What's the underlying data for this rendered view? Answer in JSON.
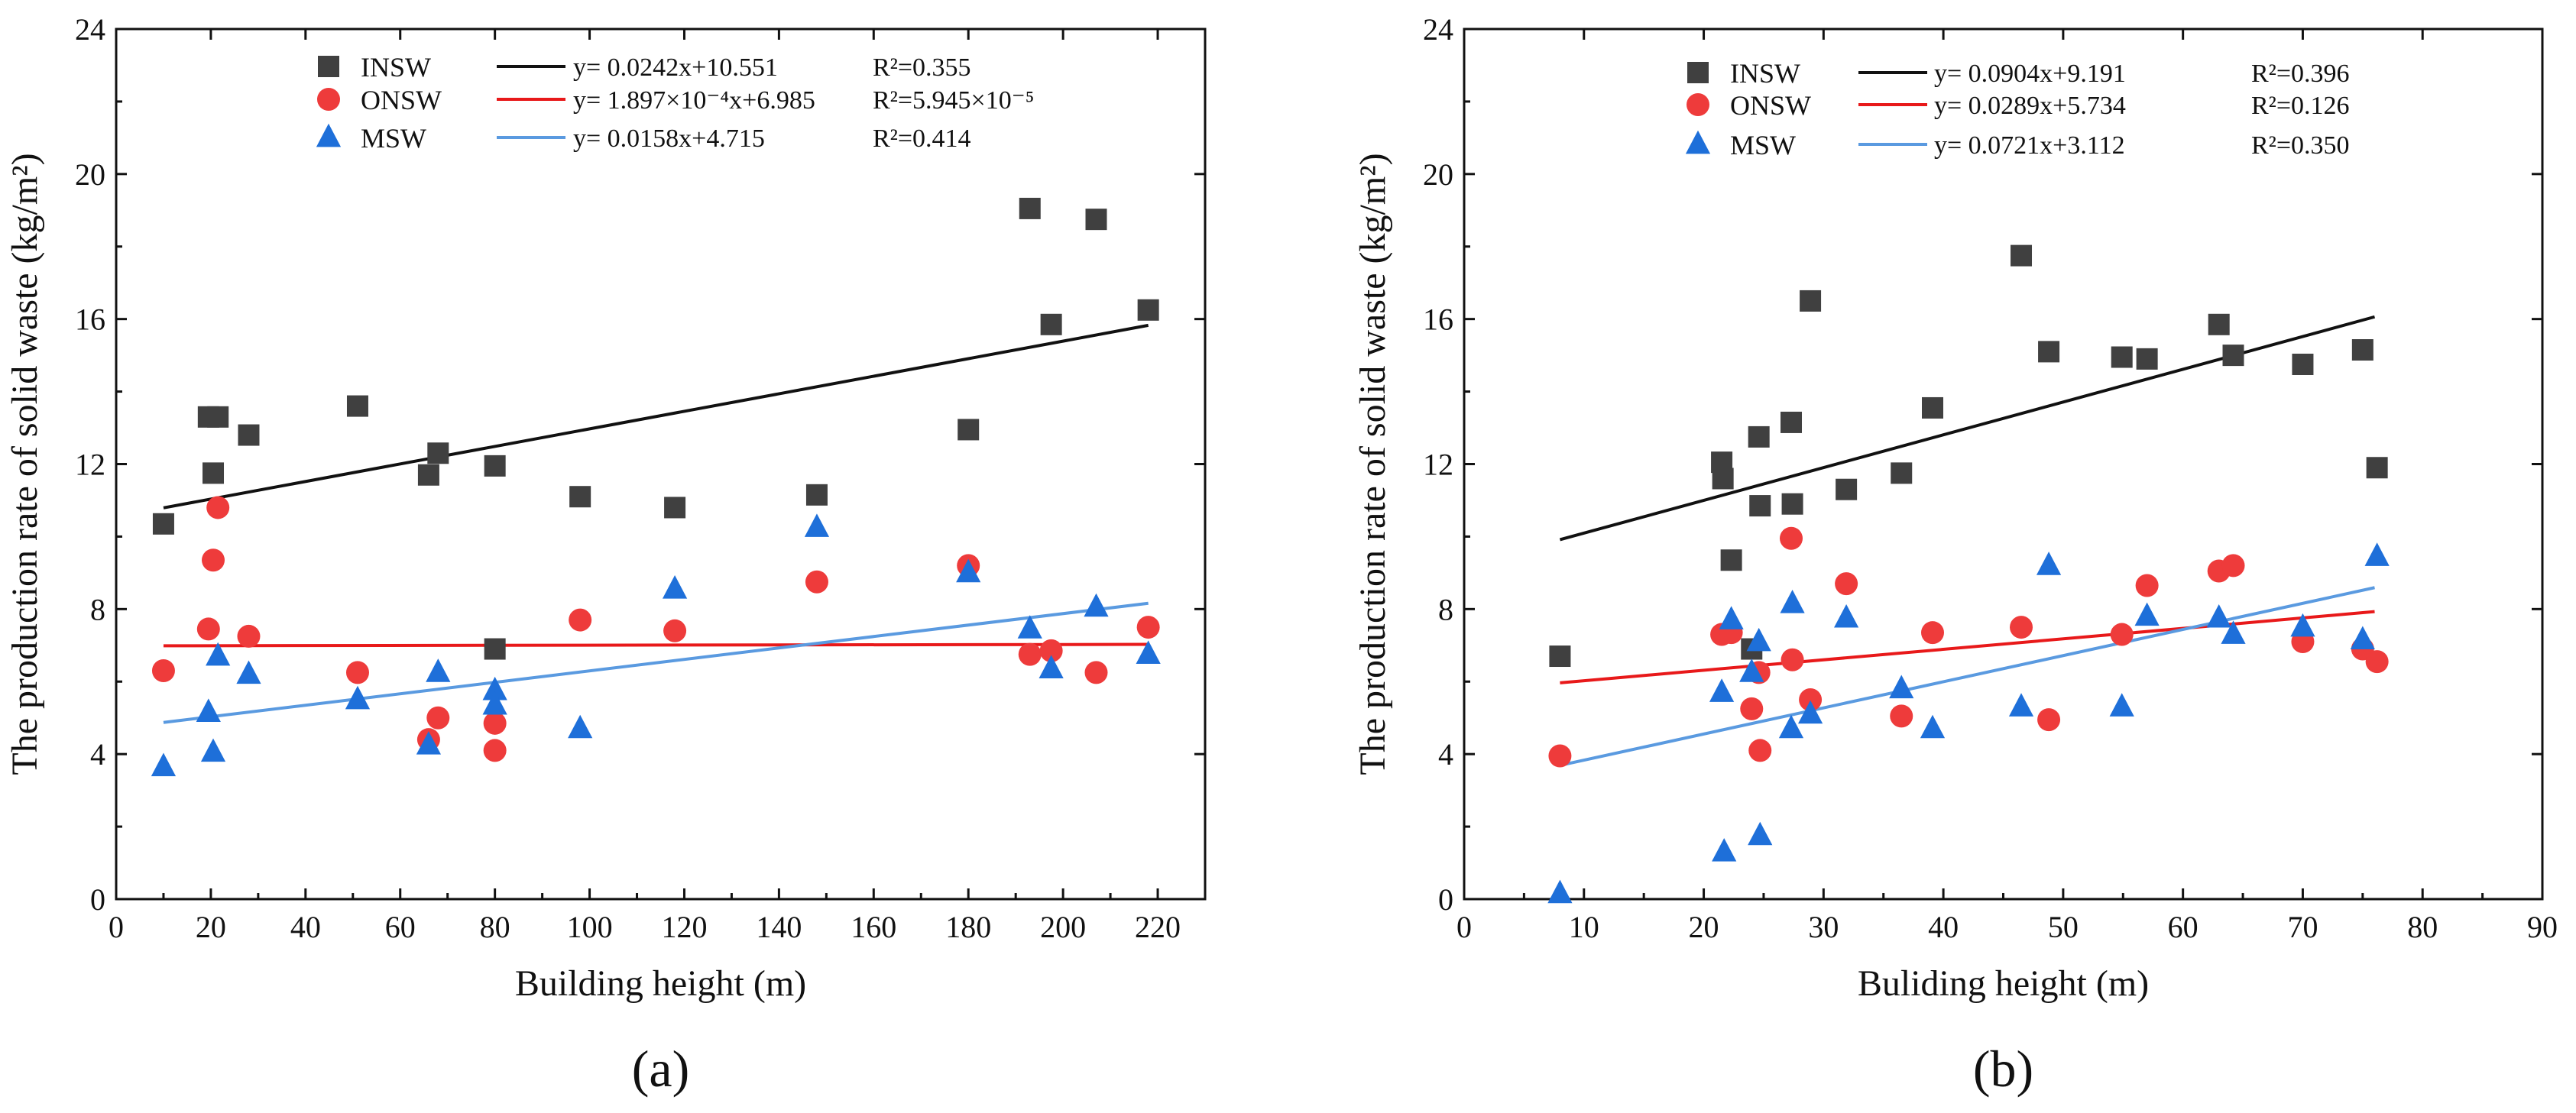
{
  "chart_data": [
    {
      "type": "scatter",
      "panel_label": "(a)",
      "xlabel": "Building height (m)",
      "ylabel": "The production rate of solid waste (kg/m²)",
      "xlim": [
        0,
        230
      ],
      "ylim": [
        0,
        24
      ],
      "xticks": [
        0,
        20,
        40,
        60,
        80,
        100,
        120,
        140,
        160,
        180,
        200,
        220
      ],
      "yticks": [
        0,
        4,
        8,
        12,
        16,
        20,
        24
      ],
      "legend_position": "top-center",
      "series": [
        {
          "name": "INSW",
          "marker": "square",
          "color": "#404040",
          "fit": {
            "label": "y= 0.0242x+10.551",
            "r2": "R²=0.355",
            "slope": 0.0242,
            "intercept": 10.551,
            "x_range": [
              10,
              218
            ],
            "color": "#111111"
          },
          "points": [
            [
              10,
              10.35
            ],
            [
              19.5,
              13.3
            ],
            [
              20.5,
              11.75
            ],
            [
              21.5,
              13.3
            ],
            [
              28,
              12.8
            ],
            [
              51,
              13.6
            ],
            [
              66,
              11.7
            ],
            [
              68,
              12.3
            ],
            [
              80,
              11.95
            ],
            [
              80,
              6.9
            ],
            [
              98,
              11.1
            ],
            [
              118,
              10.8
            ],
            [
              148,
              11.15
            ],
            [
              180,
              12.95
            ],
            [
              193,
              19.05
            ],
            [
              197.5,
              15.85
            ],
            [
              207,
              18.75
            ],
            [
              218,
              16.25
            ]
          ]
        },
        {
          "name": "ONSW",
          "marker": "circle",
          "color": "#ee3b3b",
          "fit": {
            "label": "y= 1.897×10⁻⁴x+6.985",
            "r2": "R²=5.945×10⁻⁵",
            "slope": 0.0001897,
            "intercept": 6.985,
            "x_range": [
              10,
              218
            ],
            "color": "#e8191a"
          },
          "points": [
            [
              10,
              6.3
            ],
            [
              19.5,
              7.45
            ],
            [
              20.5,
              9.35
            ],
            [
              21.5,
              10.8
            ],
            [
              28,
              7.25
            ],
            [
              51,
              6.25
            ],
            [
              66,
              4.4
            ],
            [
              68,
              5.0
            ],
            [
              80,
              4.85
            ],
            [
              80,
              4.1
            ],
            [
              98,
              7.7
            ],
            [
              118,
              7.4
            ],
            [
              148,
              8.75
            ],
            [
              180,
              9.2
            ],
            [
              193,
              6.75
            ],
            [
              197.5,
              6.85
            ],
            [
              207,
              6.25
            ],
            [
              218,
              7.5
            ]
          ]
        },
        {
          "name": "MSW",
          "marker": "triangle",
          "color": "#1e6fd9",
          "fit": {
            "label": "y= 0.0158x+4.715",
            "r2": "R²=0.414",
            "slope": 0.0158,
            "intercept": 4.715,
            "x_range": [
              10,
              218
            ],
            "color": "#5a9ae0"
          },
          "points": [
            [
              10,
              3.65
            ],
            [
              19.5,
              5.15
            ],
            [
              20.5,
              4.05
            ],
            [
              21.5,
              6.7
            ],
            [
              28,
              6.2
            ],
            [
              51,
              5.5
            ],
            [
              66,
              4.25
            ],
            [
              68,
              6.25
            ],
            [
              80,
              5.75
            ],
            [
              80,
              5.35
            ],
            [
              98,
              4.7
            ],
            [
              118,
              8.55
            ],
            [
              148,
              10.25
            ],
            [
              180,
              9.0
            ],
            [
              193,
              7.45
            ],
            [
              197.5,
              6.35
            ],
            [
              207,
              8.05
            ],
            [
              218,
              6.75
            ]
          ]
        }
      ]
    },
    {
      "type": "scatter",
      "panel_label": "(b)",
      "xlabel": "Buliding height (m)",
      "ylabel": "The production rate of solid waste (kg/m²)",
      "xlim": [
        0,
        90
      ],
      "ylim": [
        0,
        24
      ],
      "xticks": [
        0,
        10,
        20,
        30,
        40,
        50,
        60,
        70,
        80,
        90
      ],
      "yticks": [
        0,
        4,
        8,
        12,
        16,
        20,
        24
      ],
      "legend_position": "top-center",
      "series": [
        {
          "name": "INSW",
          "marker": "square",
          "color": "#404040",
          "fit": {
            "label": "y= 0.0904x+9.191",
            "r2": "R²=0.396",
            "slope": 0.0904,
            "intercept": 9.191,
            "x_range": [
              8,
              76
            ],
            "color": "#111111"
          },
          "points": [
            [
              8,
              6.7
            ],
            [
              21.5,
              12.05
            ],
            [
              21.6,
              11.6
            ],
            [
              22.3,
              9.35
            ],
            [
              24,
              6.9
            ],
            [
              24.6,
              12.75
            ],
            [
              24.7,
              10.85
            ],
            [
              27.3,
              13.15
            ],
            [
              27.4,
              10.9
            ],
            [
              28.9,
              16.5
            ],
            [
              31.9,
              11.3
            ],
            [
              36.5,
              11.75
            ],
            [
              39.1,
              13.55
            ],
            [
              46.5,
              17.75
            ],
            [
              48.8,
              15.1
            ],
            [
              54.9,
              14.95
            ],
            [
              57,
              14.9
            ],
            [
              63,
              15.85
            ],
            [
              64.2,
              15.0
            ],
            [
              70,
              14.75
            ],
            [
              75,
              15.15
            ],
            [
              76.2,
              11.9
            ]
          ]
        },
        {
          "name": "ONSW",
          "marker": "circle",
          "color": "#ee3b3b",
          "fit": {
            "label": "y= 0.0289x+5.734",
            "r2": "R²=0.126",
            "slope": 0.0289,
            "intercept": 5.734,
            "x_range": [
              8,
              76
            ],
            "color": "#e8191a"
          },
          "points": [
            [
              8,
              3.95
            ],
            [
              21.5,
              7.3
            ],
            [
              22.3,
              7.35
            ],
            [
              24,
              5.25
            ],
            [
              24.6,
              6.25
            ],
            [
              24.7,
              4.1
            ],
            [
              27.3,
              9.95
            ],
            [
              27.4,
              6.6
            ],
            [
              28.9,
              5.5
            ],
            [
              31.9,
              8.7
            ],
            [
              36.5,
              5.05
            ],
            [
              39.1,
              7.35
            ],
            [
              46.5,
              7.5
            ],
            [
              48.8,
              4.95
            ],
            [
              54.9,
              7.3
            ],
            [
              57,
              8.65
            ],
            [
              63,
              9.05
            ],
            [
              64.2,
              9.2
            ],
            [
              70,
              7.1
            ],
            [
              75,
              6.9
            ],
            [
              76.2,
              6.55
            ]
          ]
        },
        {
          "name": "MSW",
          "marker": "triangle",
          "color": "#1e6fd9",
          "fit": {
            "label": "y= 0.0721x+3.112",
            "r2": "R²=0.350",
            "slope": 0.0721,
            "intercept": 3.112,
            "x_range": [
              8,
              76
            ],
            "color": "#5a9ae0"
          },
          "points": [
            [
              8,
              0.15
            ],
            [
              21.5,
              5.7
            ],
            [
              21.7,
              1.3
            ],
            [
              22.3,
              7.7
            ],
            [
              24,
              6.25
            ],
            [
              24.6,
              7.1
            ],
            [
              24.7,
              1.75
            ],
            [
              27.3,
              4.7
            ],
            [
              27.4,
              8.15
            ],
            [
              28.9,
              5.1
            ],
            [
              31.9,
              7.75
            ],
            [
              36.5,
              5.8
            ],
            [
              39.1,
              4.7
            ],
            [
              46.5,
              5.3
            ],
            [
              48.8,
              9.2
            ],
            [
              54.9,
              5.3
            ],
            [
              57,
              7.8
            ],
            [
              63,
              7.75
            ],
            [
              64.2,
              7.3
            ],
            [
              70,
              7.5
            ],
            [
              75,
              7.15
            ],
            [
              76.2,
              9.45
            ]
          ]
        }
      ]
    }
  ]
}
